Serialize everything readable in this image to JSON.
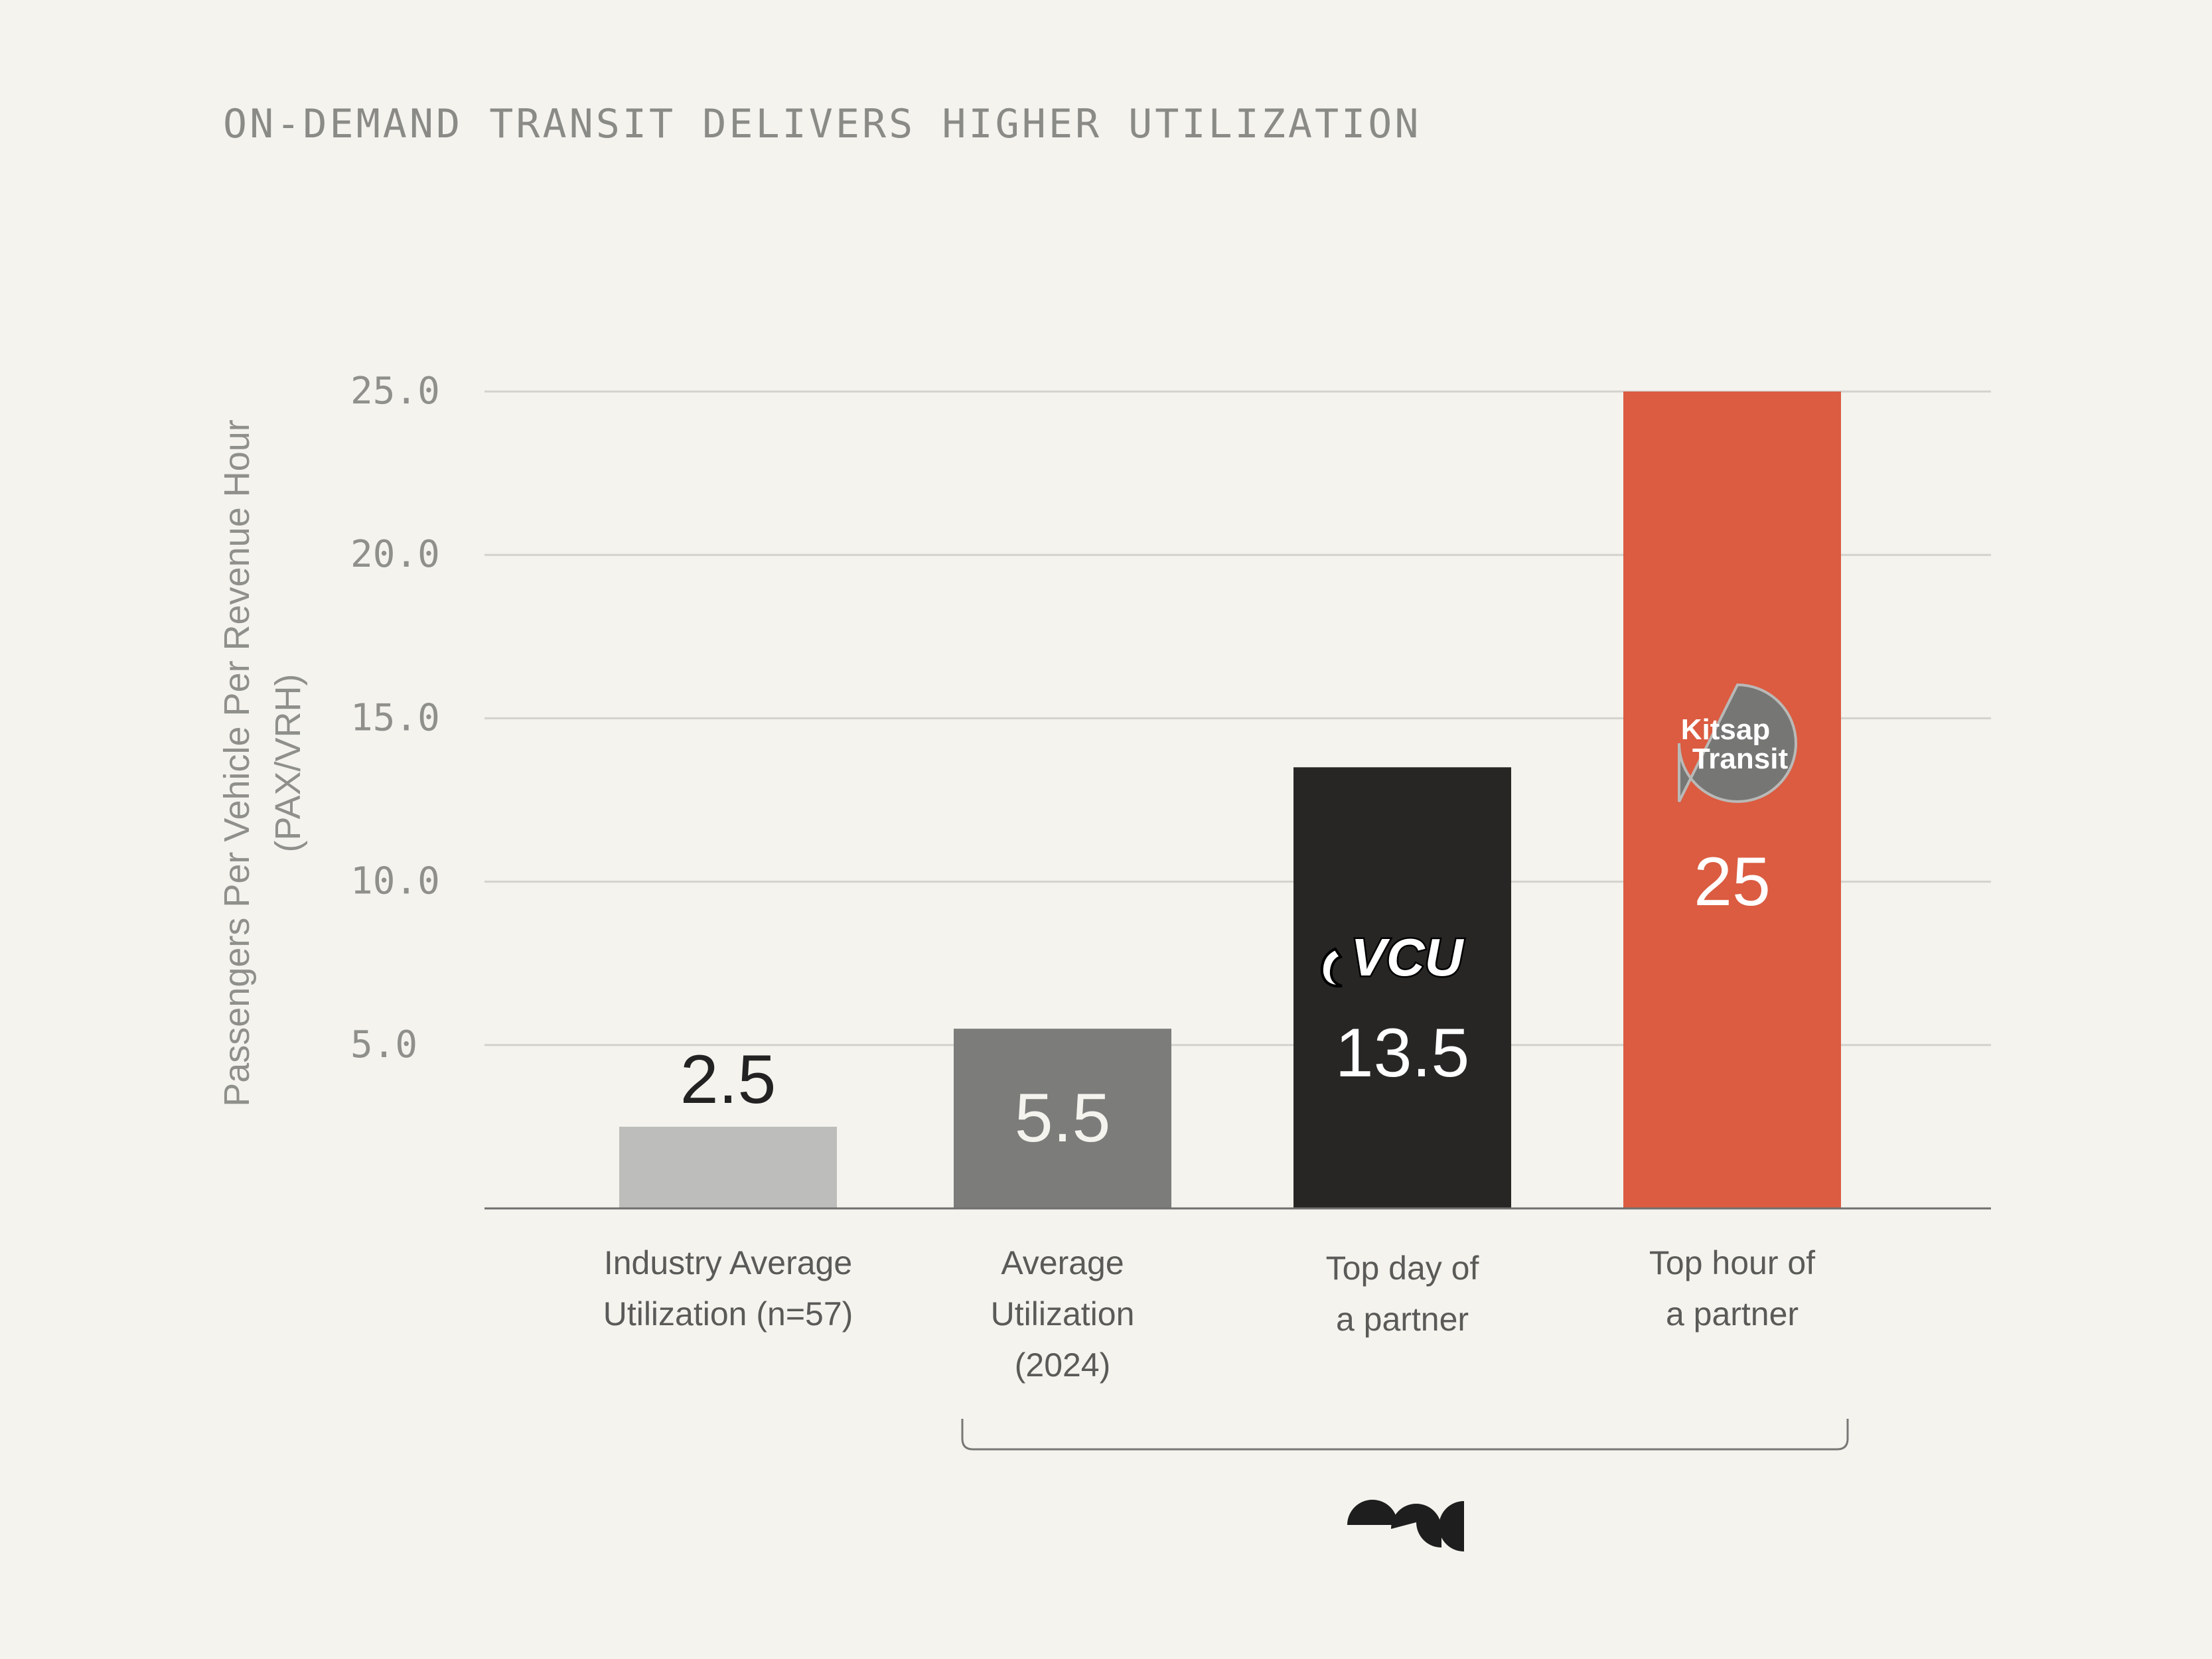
{
  "title": "ON-DEMAND TRANSIT DELIVERS HIGHER UTILIZATION",
  "chart_data": {
    "type": "bar",
    "title": "ON-DEMAND TRANSIT DELIVERS HIGHER UTILIZATION",
    "ylabel_line1": "Passengers Per Vehicle Per Revenue Hour",
    "ylabel_line2": "(PAX/VRH)",
    "ylim": [
      0,
      25
    ],
    "yticks": [
      5,
      10,
      15,
      20,
      25
    ],
    "ytick_labels": [
      "5.0",
      "10.0",
      "15.0",
      "20.0",
      "25.0"
    ],
    "grid": true,
    "categories": [
      [
        "Industry Average",
        "Utilization (n=57)"
      ],
      [
        "Average",
        "Utilization",
        "(2024)"
      ],
      [
        "Top day of",
        "a partner"
      ],
      [
        "Top hour of",
        "a partner"
      ]
    ],
    "values": [
      2.5,
      5.5,
      13.5,
      25
    ],
    "data_labels": [
      "2.5",
      "5.5",
      "13.5",
      "25"
    ],
    "colors": [
      "#bdbdbb",
      "#7c7c7a",
      "#282625",
      "#db5c41"
    ],
    "label_colors": [
      "#222222",
      "#f4f3ee",
      "#ffffff",
      "#ffffff"
    ],
    "bar_logos": [
      null,
      null,
      "vcu-logo",
      "kitsap-transit-logo"
    ],
    "bracket_spans": "bars 2-4"
  },
  "logos": {
    "vcu": "VCU",
    "kitsap_line1": "Kitsap",
    "kitsap_line2": "Transit",
    "brand_icon": "brand-mark-icon"
  }
}
